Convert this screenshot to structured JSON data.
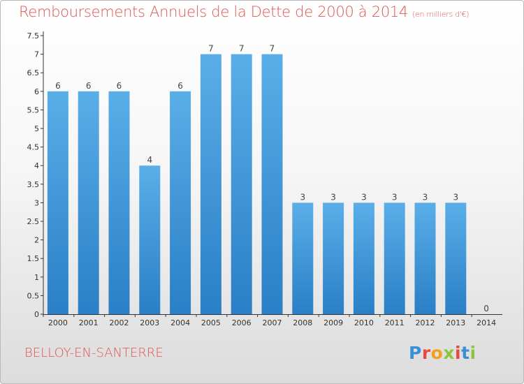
{
  "header": {
    "title": "Remboursements Annuels de la Dette de 2000 à 2014",
    "unit": "(en milliers d'€)"
  },
  "footer": {
    "commune": "BELLOY-EN-SANTERRE",
    "logo_text": "Proxiti"
  },
  "colors": {
    "title": "#e0544f",
    "bar_top": "#5aaee8",
    "bar_bottom": "#2a7fc6",
    "axis": "#333333"
  },
  "chart_data": {
    "type": "bar",
    "title": "Remboursements Annuels de la Dette de 2000 à 2014",
    "categories": [
      "2000",
      "2001",
      "2002",
      "2003",
      "2004",
      "2005",
      "2006",
      "2007",
      "2008",
      "2009",
      "2010",
      "2011",
      "2012",
      "2013",
      "2014"
    ],
    "values": [
      6,
      6,
      6,
      4,
      6,
      7,
      7,
      7,
      3,
      3,
      3,
      3,
      3,
      3,
      0
    ],
    "ylim": [
      0,
      7.5
    ],
    "yticks": [
      "0",
      "0.5",
      "1",
      "1.5",
      "2",
      "2.5",
      "3",
      "3.5",
      "4",
      "4.5",
      "5",
      "5.5",
      "6",
      "6.5",
      "7",
      "7.5"
    ],
    "xlabel": "",
    "ylabel": "",
    "grid": false,
    "legend": "none"
  }
}
